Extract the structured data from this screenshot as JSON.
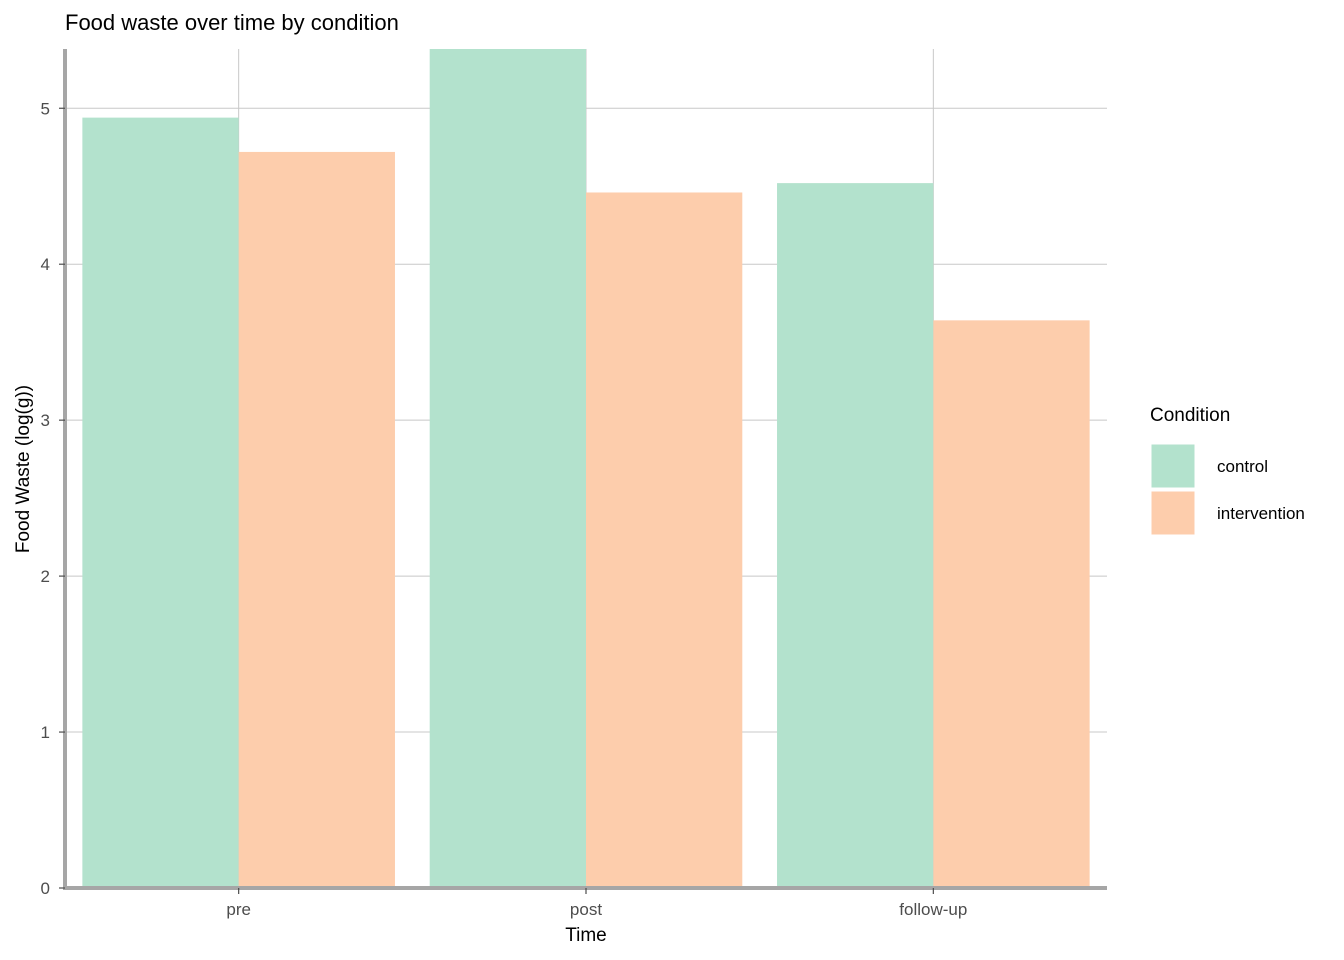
{
  "chart_data": {
    "type": "bar",
    "title": "Food waste over time by condition",
    "xlabel": "Time",
    "ylabel": "Food Waste (log(g))",
    "categories": [
      "pre",
      "post",
      "follow-up"
    ],
    "series": [
      {
        "name": "control",
        "values": [
          4.94,
          5.38,
          4.52
        ],
        "color": "#b3e2cd"
      },
      {
        "name": "intervention",
        "values": [
          4.72,
          4.46,
          3.64
        ],
        "color": "#fdcdac"
      }
    ],
    "yticks": [
      0,
      1,
      2,
      3,
      4,
      5
    ],
    "ylim": [
      0,
      5.38
    ],
    "grid": true,
    "legend": {
      "title": "Condition",
      "placement": "right"
    }
  }
}
